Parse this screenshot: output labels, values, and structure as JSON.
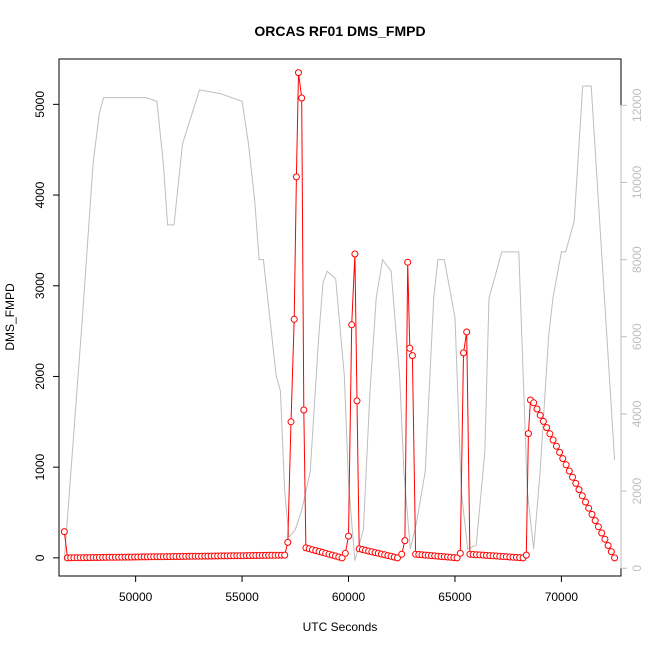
{
  "chart_data": {
    "type": "line",
    "title": "ORCAS RF01 DMS_FMPD",
    "xlabel": "UTC Seconds",
    "ylabel": "DMS_FMPD",
    "xlim": [
      46400,
      72800
    ],
    "ylim": [
      -200,
      5500
    ],
    "y2lim": [
      -200,
      13200
    ],
    "x_ticks": [
      50000,
      55000,
      60000,
      65000,
      70000
    ],
    "y_ticks": [
      0,
      1000,
      2000,
      3000,
      4000,
      5000
    ],
    "y2_ticks": [
      0,
      2000,
      4000,
      6000,
      8000,
      10000,
      12000
    ],
    "grid": false,
    "colors": {
      "primary": "#ff0000",
      "secondary": "#bebebe",
      "axis": "#000000"
    },
    "series": [
      {
        "axis": "left",
        "style": "line+open-circles",
        "x": [
          46650,
          46800,
          57000,
          57150,
          57300,
          57450,
          57550,
          57650,
          57800,
          57900,
          58000,
          59700,
          59850,
          60000,
          60150,
          60300,
          60400,
          60500,
          62300,
          62500,
          62650,
          62780,
          62880,
          63000,
          63150,
          65100,
          65250,
          65400,
          65550,
          65700,
          68200,
          68350,
          68450,
          68550,
          68700,
          72500
        ],
        "y": [
          290,
          0,
          30,
          170,
          1500,
          2630,
          4200,
          5350,
          5070,
          1630,
          110,
          0,
          50,
          240,
          2570,
          3350,
          1730,
          100,
          0,
          40,
          190,
          3260,
          2310,
          2230,
          40,
          0,
          50,
          2260,
          2490,
          40,
          0,
          30,
          1370,
          1740,
          1710,
          0
        ]
      },
      {
        "axis": "right",
        "style": "line",
        "x": [
          46650,
          47500,
          48000,
          48300,
          48500,
          49500,
          50500,
          51000,
          51300,
          51500,
          51800,
          52200,
          53000,
          54000,
          55000,
          55300,
          55600,
          55800,
          56000,
          56400,
          56600,
          56800,
          57000,
          57200,
          57500,
          57800,
          58200,
          58600,
          58800,
          59000,
          59400,
          59800,
          60000,
          60300,
          60700,
          61000,
          61300,
          61600,
          62000,
          62400,
          62600,
          62900,
          63200,
          63600,
          64000,
          64200,
          64500,
          65000,
          65300,
          65600,
          66000,
          66400,
          66600,
          67200,
          67600,
          68000,
          68400,
          68700,
          69000,
          69400,
          69600,
          70000,
          70200,
          70600,
          71000,
          71400,
          72500
        ],
        "y": [
          200,
          6500,
          10500,
          11800,
          12200,
          12200,
          12200,
          12100,
          10500,
          8900,
          8900,
          11000,
          12400,
          12300,
          12100,
          11000,
          9500,
          8000,
          8000,
          6000,
          5000,
          4600,
          2000,
          800,
          1000,
          1500,
          2500,
          6000,
          7400,
          7700,
          7500,
          5000,
          2200,
          200,
          1000,
          4500,
          7000,
          8000,
          7700,
          5000,
          2500,
          500,
          1200,
          2500,
          7000,
          8000,
          8000,
          6500,
          2000,
          500,
          600,
          3000,
          7000,
          8200,
          8200,
          8200,
          2000,
          500,
          2500,
          6000,
          7000,
          8200,
          8200,
          9000,
          12500,
          12500,
          2800
        ]
      }
    ]
  }
}
